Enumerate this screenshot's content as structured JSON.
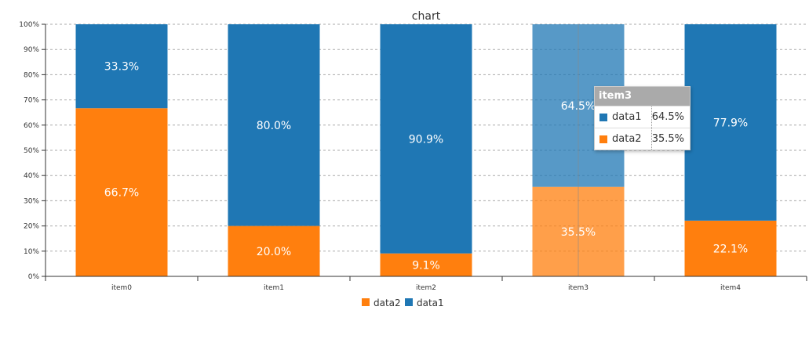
{
  "chart_data": {
    "type": "bar",
    "stacked": true,
    "normalized": true,
    "title": "chart",
    "categories": [
      "item0",
      "item1",
      "item2",
      "item3",
      "item4"
    ],
    "series": [
      {
        "name": "data2",
        "color": "#ff7f0e",
        "values": [
          66.7,
          20.0,
          9.1,
          35.5,
          22.1
        ],
        "labels": [
          "66.7%",
          "20.0%",
          "9.1%",
          "35.5%",
          "22.1%"
        ]
      },
      {
        "name": "data1",
        "color": "#1f77b4",
        "values": [
          33.3,
          80.0,
          90.9,
          64.5,
          77.9
        ],
        "labels": [
          "33.3%",
          "80.0%",
          "90.9%",
          "64.5%",
          "77.9%"
        ]
      }
    ],
    "ylim": [
      0,
      100
    ],
    "yticks": [
      "0%",
      "10%",
      "20%",
      "30%",
      "40%",
      "50%",
      "60%",
      "70%",
      "80%",
      "90%",
      "100%"
    ],
    "grid": "horizontal dashed",
    "legend": [
      "data2",
      "data1"
    ],
    "legend_position": "bottom",
    "highlighted_category": "item3"
  },
  "tooltip": {
    "title": "item3",
    "rows": [
      {
        "name": "data1",
        "value": "64.5%",
        "color": "#1f77b4"
      },
      {
        "name": "data2",
        "value": "35.5%",
        "color": "#ff7f0e"
      }
    ]
  }
}
